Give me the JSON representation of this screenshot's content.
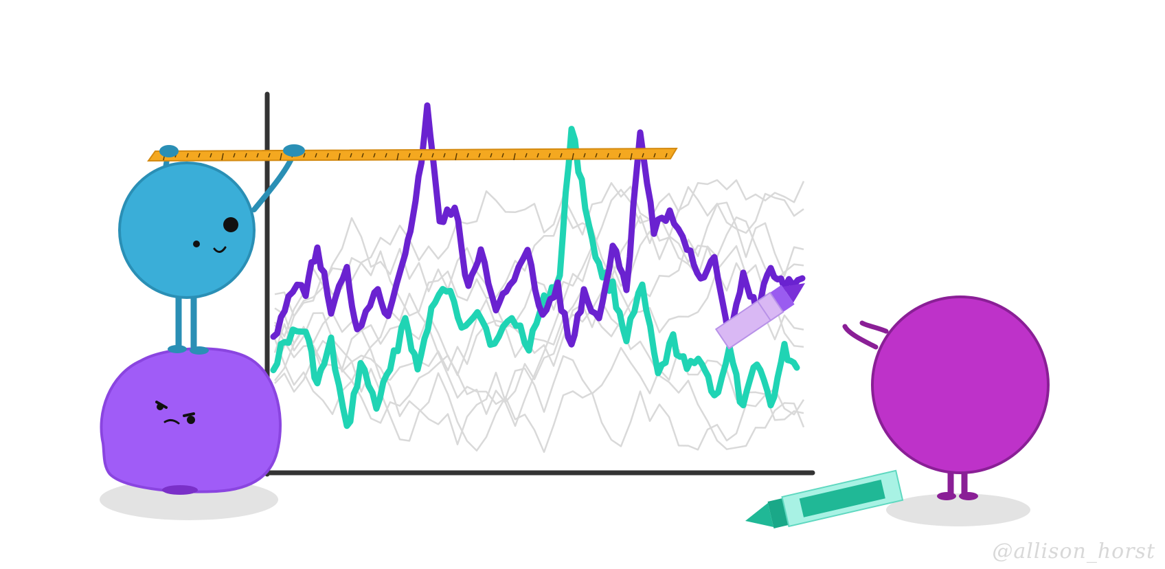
{
  "signature": "@allison_horst",
  "colors": {
    "background": "#ffffff",
    "axis": "#333333",
    "purple_line": "#6a22d0",
    "teal_line": "#20d4b4",
    "gray_lines": "#d9d9d9",
    "ruler": "#f4a820",
    "blue_monster": "#3aaed8",
    "lavender_monster": "#a05cf7",
    "magenta_monster": "#be32c9",
    "crayon_purple": "#cfa8f0",
    "crayon_teal": "#20b896"
  },
  "icons": {
    "blue_monster": "fuzzy-blue-monster",
    "lavender_monster": "fuzzy-lavender-monster",
    "magenta_monster": "fuzzy-magenta-monster",
    "ruler": "ruler",
    "purple_crayon": "purple-crayon",
    "teal_crayon": "teal-crayon"
  }
}
